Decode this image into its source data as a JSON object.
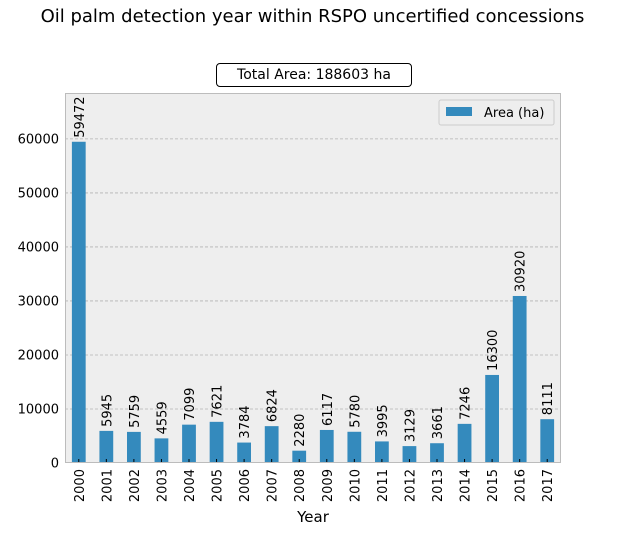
{
  "figure": {
    "title": "Oil palm detection year within RSPO uncertified concessions",
    "total_area_label": "Total Area: 188603 ha"
  },
  "chart_data": {
    "type": "bar",
    "title": "Total Area: 188603 ha",
    "xlabel": "Year",
    "ylabel": "",
    "categories": [
      "2000",
      "2001",
      "2002",
      "2003",
      "2004",
      "2005",
      "2006",
      "2007",
      "2008",
      "2009",
      "2010",
      "2011",
      "2012",
      "2013",
      "2014",
      "2015",
      "2016",
      "2017"
    ],
    "series": [
      {
        "name": "Area (ha)",
        "values": [
          59472,
          5945,
          5759,
          4559,
          7099,
          7621,
          3784,
          6824,
          2280,
          6117,
          5780,
          3995,
          3129,
          3661,
          7246,
          16300,
          30920,
          8111
        ]
      }
    ],
    "ylim": [
      0,
      68500
    ],
    "yticks": [
      0,
      10000,
      20000,
      30000,
      40000,
      50000,
      60000
    ],
    "grid": true,
    "legend_position": "top-right",
    "colors": {
      "bar": "#348abd",
      "axes_bg": "#eeeeee",
      "grid": "#b2b2b2",
      "frame": "#bcbcbc"
    }
  }
}
